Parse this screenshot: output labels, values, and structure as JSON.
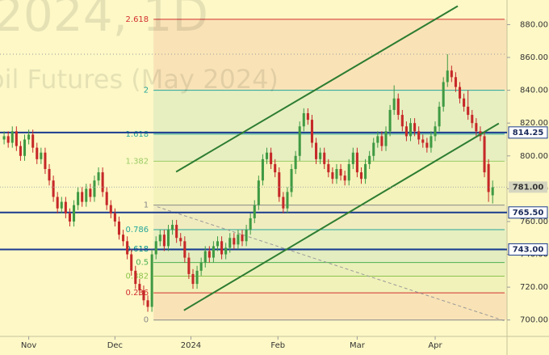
{
  "chart_data": {
    "type": "candlestick",
    "watermark": [
      "2024, 1D",
      "oil Futures (May 2024)"
    ],
    "xlim": [
      -1,
      122.5
    ],
    "ylim": [
      690,
      895
    ],
    "xticks": [
      {
        "value": 6,
        "label": "Nov"
      },
      {
        "value": 27,
        "label": "Dec"
      },
      {
        "value": 45.5,
        "label": "2024"
      },
      {
        "value": 66.7,
        "label": "Feb"
      },
      {
        "value": 86,
        "label": "Mar"
      },
      {
        "value": 105,
        "label": "Apr"
      }
    ],
    "yticks": [
      {
        "value": 700,
        "label": "700.00"
      },
      {
        "value": 720,
        "label": "720.00"
      },
      {
        "value": 740,
        "label": "740.00"
      },
      {
        "value": 760,
        "label": "760.00"
      },
      {
        "value": 780,
        "label": "780.00"
      },
      {
        "value": 800,
        "label": "800.00"
      },
      {
        "value": 820,
        "label": "820.00"
      },
      {
        "value": 840,
        "label": "840.00"
      },
      {
        "value": 860,
        "label": "860.00"
      },
      {
        "value": 880,
        "label": "880.00"
      }
    ],
    "up_color": "#3f9a43",
    "down_color": "#c62828",
    "candles": [
      [
        810,
        815,
        807,
        812
      ],
      [
        812,
        815,
        805,
        808
      ],
      [
        808,
        818,
        805,
        815
      ],
      [
        815,
        818,
        803,
        806
      ],
      [
        806,
        809,
        797,
        800
      ],
      [
        800,
        813,
        797,
        810
      ],
      [
        810,
        816,
        807,
        813
      ],
      [
        813,
        816,
        802,
        805
      ],
      [
        805,
        808,
        795,
        798
      ],
      [
        798,
        805,
        795,
        802
      ],
      [
        802,
        805,
        789,
        792
      ],
      [
        792,
        795,
        782,
        785
      ],
      [
        785,
        788,
        772,
        775
      ],
      [
        775,
        778,
        765,
        768
      ],
      [
        768,
        775,
        765,
        772
      ],
      [
        772,
        775,
        762,
        765
      ],
      [
        765,
        768,
        757,
        760
      ],
      [
        760,
        773,
        757,
        770
      ],
      [
        770,
        781,
        767,
        778
      ],
      [
        778,
        781,
        769,
        772
      ],
      [
        772,
        783,
        769,
        780
      ],
      [
        780,
        783,
        772,
        775
      ],
      [
        775,
        788,
        772,
        785
      ],
      [
        785,
        793,
        782,
        790
      ],
      [
        790,
        793,
        775,
        778
      ],
      [
        778,
        781,
        767,
        770
      ],
      [
        770,
        773,
        762,
        765
      ],
      [
        765,
        768,
        757,
        760
      ],
      [
        760,
        763,
        749,
        752
      ],
      [
        752,
        755,
        745,
        748
      ],
      [
        748,
        751,
        737,
        740
      ],
      [
        740,
        743,
        727,
        730
      ],
      [
        730,
        733,
        719,
        722
      ],
      [
        722,
        725,
        715,
        718
      ],
      [
        718,
        721,
        709,
        712
      ],
      [
        712,
        715,
        705,
        708
      ],
      [
        708,
        743,
        705,
        740
      ],
      [
        740,
        751,
        737,
        748
      ],
      [
        748,
        755,
        745,
        752
      ],
      [
        752,
        755,
        742,
        745
      ],
      [
        745,
        758,
        742,
        755
      ],
      [
        755,
        761,
        752,
        758
      ],
      [
        758,
        761,
        747,
        750
      ],
      [
        750,
        753,
        745,
        748
      ],
      [
        748,
        751,
        735,
        738
      ],
      [
        738,
        741,
        725,
        728
      ],
      [
        728,
        731,
        719,
        722
      ],
      [
        722,
        733,
        719,
        730
      ],
      [
        730,
        738,
        727,
        735
      ],
      [
        735,
        745,
        732,
        742
      ],
      [
        742,
        745,
        735,
        738
      ],
      [
        738,
        748,
        735,
        745
      ],
      [
        745,
        751,
        742,
        748
      ],
      [
        748,
        751,
        737,
        740
      ],
      [
        740,
        747,
        737,
        744
      ],
      [
        744,
        753,
        741,
        750
      ],
      [
        750,
        753,
        743,
        746
      ],
      [
        746,
        755,
        743,
        752
      ],
      [
        752,
        755,
        745,
        748
      ],
      [
        748,
        758,
        745,
        755
      ],
      [
        755,
        765,
        752,
        762
      ],
      [
        762,
        773,
        759,
        770
      ],
      [
        770,
        788,
        767,
        785
      ],
      [
        785,
        801,
        782,
        798
      ],
      [
        798,
        805,
        795,
        802
      ],
      [
        802,
        805,
        792,
        795
      ],
      [
        795,
        798,
        787,
        790
      ],
      [
        790,
        793,
        772,
        775
      ],
      [
        775,
        778,
        765,
        768
      ],
      [
        768,
        781,
        765,
        778
      ],
      [
        778,
        795,
        775,
        792
      ],
      [
        792,
        803,
        789,
        800
      ],
      [
        800,
        821,
        797,
        818
      ],
      [
        818,
        829,
        815,
        826
      ],
      [
        826,
        829,
        819,
        822
      ],
      [
        822,
        825,
        805,
        808
      ],
      [
        808,
        811,
        795,
        798
      ],
      [
        798,
        805,
        795,
        802
      ],
      [
        802,
        805,
        792,
        795
      ],
      [
        795,
        798,
        787,
        790
      ],
      [
        790,
        793,
        783,
        786
      ],
      [
        786,
        795,
        783,
        792
      ],
      [
        792,
        795,
        785,
        788
      ],
      [
        788,
        791,
        782,
        785
      ],
      [
        785,
        798,
        782,
        795
      ],
      [
        795,
        805,
        792,
        802
      ],
      [
        802,
        805,
        787,
        790
      ],
      [
        790,
        793,
        783,
        786
      ],
      [
        786,
        798,
        783,
        795
      ],
      [
        795,
        803,
        792,
        800
      ],
      [
        800,
        811,
        797,
        808
      ],
      [
        808,
        815,
        805,
        812
      ],
      [
        812,
        815,
        803,
        806
      ],
      [
        806,
        818,
        803,
        815
      ],
      [
        815,
        831,
        812,
        828
      ],
      [
        828,
        843,
        825,
        835
      ],
      [
        835,
        838,
        822,
        825
      ],
      [
        825,
        828,
        815,
        818
      ],
      [
        818,
        821,
        809,
        812
      ],
      [
        812,
        823,
        809,
        820
      ],
      [
        820,
        823,
        812,
        815
      ],
      [
        815,
        818,
        807,
        810
      ],
      [
        810,
        813,
        805,
        808
      ],
      [
        808,
        811,
        802,
        805
      ],
      [
        805,
        815,
        802,
        812
      ],
      [
        812,
        821,
        809,
        818
      ],
      [
        818,
        833,
        815,
        830
      ],
      [
        830,
        848,
        827,
        845
      ],
      [
        845,
        862,
        842,
        852
      ],
      [
        852,
        855,
        845,
        848
      ],
      [
        848,
        851,
        839,
        842
      ],
      [
        842,
        845,
        832,
        835
      ],
      [
        835,
        838,
        827,
        830
      ],
      [
        830,
        840,
        822,
        825
      ],
      [
        825,
        828,
        817,
        820
      ],
      [
        820,
        823,
        812,
        815
      ],
      [
        815,
        818,
        809,
        812
      ],
      [
        812,
        815,
        787,
        790
      ],
      [
        795,
        798,
        772,
        778
      ],
      [
        776,
        785,
        771,
        781
      ]
    ],
    "fib": {
      "low": 700,
      "high": 770,
      "x_start": 36.4,
      "ratios": [
        0,
        0.236,
        0.382,
        0.5,
        0.618,
        0.786,
        1,
        1.382,
        1.618,
        2,
        2.618
      ],
      "colors": [
        "#888888",
        "#d32f2f",
        "#8bc34a",
        "#4caf50",
        "#009688",
        "#26a69a",
        "#888888",
        "#9ccc65",
        "#26a69a",
        "#26a69a",
        "#d32f2f"
      ]
    },
    "levels": [
      814.25,
      {
        "value": 765.5,
        "label": "765.50"
      },
      {
        "value": 743,
        "label": "743.00"
      }
    ],
    "level_color": "#1a3a8f",
    "last_price": {
      "value": 781,
      "label": "781.00"
    },
    "dotted_level": 862,
    "trend_lines": [
      {
        "x": [
          41.9,
          110.5
        ],
        "y": [
          790.3,
          891.3
        ],
        "color": "#2e7d32"
      },
      {
        "x": [
          43.8,
          120.5
        ],
        "y": [
          705.9,
          819.8
        ],
        "color": "#2e7d32"
      }
    ],
    "dashed_line": {
      "x": [
        37.3,
        121.9
      ],
      "y": [
        769,
        699.5
      ]
    }
  }
}
